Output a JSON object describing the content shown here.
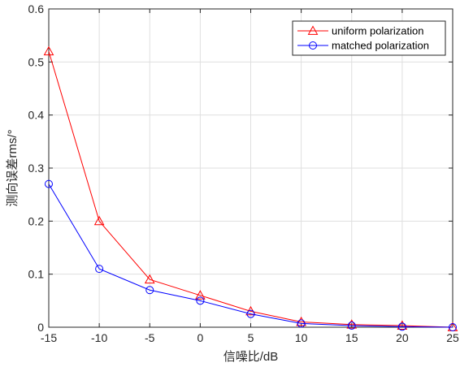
{
  "chart_data": {
    "type": "line",
    "xlabel": "信噪比/dB",
    "ylabel": "测向误差rms/°",
    "xlim": [
      -15,
      25
    ],
    "ylim": [
      0,
      0.6
    ],
    "x": [
      -15,
      -10,
      -5,
      0,
      5,
      10,
      15,
      20,
      25
    ],
    "xticks": [
      "-15",
      "-10",
      "-5",
      "0",
      "5",
      "10",
      "15",
      "20",
      "25"
    ],
    "yticks": [
      "0",
      "0.1",
      "0.2",
      "0.3",
      "0.4",
      "0.5",
      "0.6"
    ],
    "ytick_values": [
      0,
      0.1,
      0.2,
      0.3,
      0.4,
      0.5,
      0.6
    ],
    "grid": true,
    "legend_position": "top-right",
    "series": [
      {
        "name": "uniform polarization",
        "color": "#ff0000",
        "marker": "triangle",
        "values": [
          0.52,
          0.2,
          0.09,
          0.06,
          0.03,
          0.01,
          0.005,
          0.003,
          0.0
        ]
      },
      {
        "name": "matched polarization",
        "color": "#0000ff",
        "marker": "circle",
        "values": [
          0.27,
          0.11,
          0.07,
          0.05,
          0.025,
          0.007,
          0.003,
          0.001,
          0.0
        ]
      }
    ]
  }
}
